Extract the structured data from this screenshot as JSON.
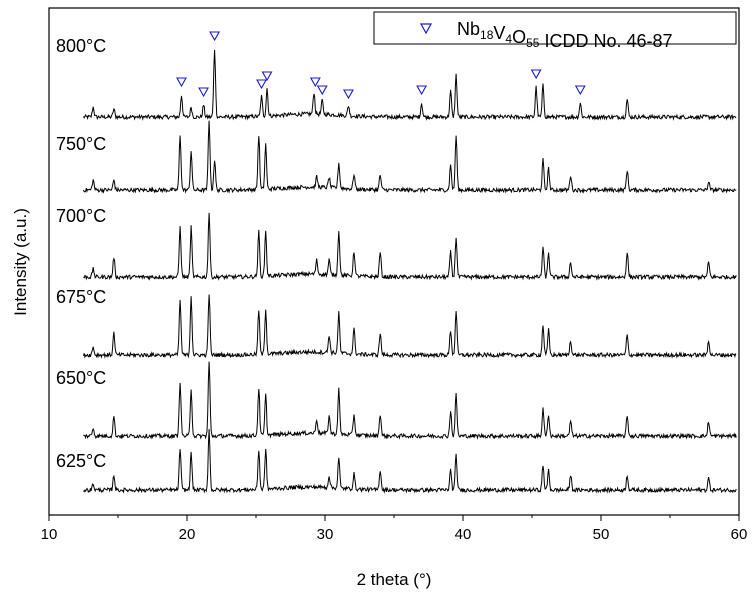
{
  "chart_data": {
    "type": "line",
    "title": "",
    "xlabel": "2 theta (°)",
    "ylabel": "Intensity (a.u.)",
    "xlim": [
      10,
      60
    ],
    "xticks": [
      10,
      20,
      30,
      40,
      50,
      60
    ],
    "y_ticks_shown": false,
    "grid": false,
    "legend": {
      "position": "top-right",
      "marker": "open-triangle-down",
      "marker_color": "#1a1acc",
      "label_main": "Nb",
      "label_parts": [
        {
          "text": "Nb",
          "sub": false
        },
        {
          "text": "18",
          "sub": true
        },
        {
          "text": "V",
          "sub": false
        },
        {
          "text": "4",
          "sub": true
        },
        {
          "text": "O",
          "sub": false
        },
        {
          "text": "55",
          "sub": true
        },
        {
          "text": " ICDD No. 46-87",
          "sub": false
        }
      ]
    },
    "reference_peaks_2theta": [
      19.6,
      21.2,
      22.0,
      25.4,
      25.8,
      29.3,
      29.8,
      31.7,
      37.0,
      45.3,
      48.5
    ],
    "series": [
      {
        "name": "800°C",
        "peaks": [
          [
            13.2,
            10
          ],
          [
            14.7,
            8
          ],
          [
            19.6,
            22
          ],
          [
            20.3,
            10
          ],
          [
            21.2,
            12
          ],
          [
            22.0,
            68
          ],
          [
            25.4,
            20
          ],
          [
            25.8,
            28
          ],
          [
            29.2,
            22
          ],
          [
            29.8,
            14
          ],
          [
            31.7,
            10
          ],
          [
            37.0,
            14
          ],
          [
            39.1,
            26
          ],
          [
            39.5,
            42
          ],
          [
            45.3,
            30
          ],
          [
            45.8,
            32
          ],
          [
            48.5,
            14
          ],
          [
            51.9,
            18
          ]
        ]
      },
      {
        "name": "750°C",
        "peaks": [
          [
            13.2,
            10
          ],
          [
            14.7,
            10
          ],
          [
            19.5,
            55
          ],
          [
            20.3,
            40
          ],
          [
            21.6,
            70
          ],
          [
            22.0,
            30
          ],
          [
            25.2,
            55
          ],
          [
            25.7,
            45
          ],
          [
            29.4,
            10
          ],
          [
            30.3,
            10
          ],
          [
            31.0,
            25
          ],
          [
            32.1,
            15
          ],
          [
            34.0,
            15
          ],
          [
            39.1,
            25
          ],
          [
            39.5,
            55
          ],
          [
            45.8,
            30
          ],
          [
            46.2,
            22
          ],
          [
            47.8,
            15
          ],
          [
            51.9,
            20
          ],
          [
            57.8,
            8
          ]
        ]
      },
      {
        "name": "700°C",
        "peaks": [
          [
            13.2,
            8
          ],
          [
            14.7,
            20
          ],
          [
            19.5,
            50
          ],
          [
            20.3,
            50
          ],
          [
            21.6,
            65
          ],
          [
            25.2,
            45
          ],
          [
            25.7,
            45
          ],
          [
            29.4,
            14
          ],
          [
            30.3,
            15
          ],
          [
            31.0,
            45
          ],
          [
            32.1,
            25
          ],
          [
            34.0,
            25
          ],
          [
            39.1,
            25
          ],
          [
            39.5,
            40
          ],
          [
            45.8,
            30
          ],
          [
            46.2,
            25
          ],
          [
            47.8,
            15
          ],
          [
            51.9,
            25
          ],
          [
            57.8,
            15
          ]
        ]
      },
      {
        "name": "675°C",
        "peaks": [
          [
            13.2,
            8
          ],
          [
            14.7,
            22
          ],
          [
            19.5,
            55
          ],
          [
            20.3,
            60
          ],
          [
            21.6,
            62
          ],
          [
            25.2,
            45
          ],
          [
            25.7,
            45
          ],
          [
            30.3,
            18
          ],
          [
            31.0,
            40
          ],
          [
            32.1,
            25
          ],
          [
            34.0,
            22
          ],
          [
            39.1,
            25
          ],
          [
            39.5,
            45
          ],
          [
            45.8,
            30
          ],
          [
            46.2,
            25
          ],
          [
            47.8,
            15
          ],
          [
            51.9,
            20
          ],
          [
            57.8,
            15
          ]
        ]
      },
      {
        "name": "650°C",
        "peaks": [
          [
            13.2,
            8
          ],
          [
            14.7,
            20
          ],
          [
            19.5,
            55
          ],
          [
            20.3,
            48
          ],
          [
            21.6,
            75
          ],
          [
            25.2,
            48
          ],
          [
            25.7,
            40
          ],
          [
            29.4,
            14
          ],
          [
            30.3,
            18
          ],
          [
            31.0,
            45
          ],
          [
            32.1,
            20
          ],
          [
            34.0,
            22
          ],
          [
            39.1,
            25
          ],
          [
            39.5,
            42
          ],
          [
            45.8,
            28
          ],
          [
            46.2,
            22
          ],
          [
            47.8,
            15
          ],
          [
            51.9,
            20
          ],
          [
            57.8,
            15
          ]
        ]
      },
      {
        "name": "625°C",
        "peaks": [
          [
            13.2,
            6
          ],
          [
            14.7,
            15
          ],
          [
            19.5,
            42
          ],
          [
            20.3,
            38
          ],
          [
            21.6,
            60
          ],
          [
            25.2,
            40
          ],
          [
            25.7,
            40
          ],
          [
            30.3,
            12
          ],
          [
            31.0,
            30
          ],
          [
            32.1,
            15
          ],
          [
            34.0,
            20
          ],
          [
            39.1,
            20
          ],
          [
            39.5,
            35
          ],
          [
            45.8,
            25
          ],
          [
            46.2,
            20
          ],
          [
            47.8,
            15
          ],
          [
            51.9,
            15
          ],
          [
            57.8,
            12
          ]
        ]
      }
    ]
  }
}
